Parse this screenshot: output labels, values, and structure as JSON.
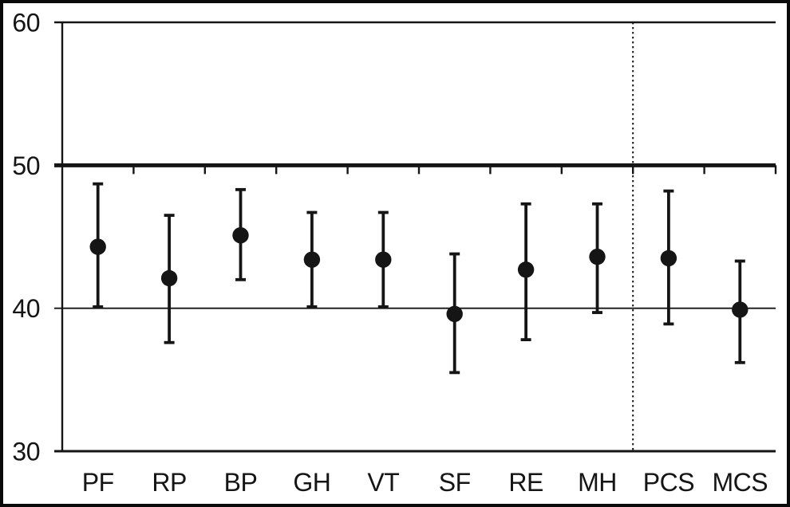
{
  "figure": {
    "background": "#ffffff",
    "frame_color": "#0a0a0a",
    "ink_color": "#151515"
  },
  "chart_data": {
    "type": "scatter",
    "subtype": "means-with-error-bars",
    "title": "",
    "xlabel": "",
    "ylabel": "",
    "categories": [
      "PF",
      "RP",
      "BP",
      "GH",
      "VT",
      "SF",
      "RE",
      "MH",
      "PCS",
      "MCS"
    ],
    "series": [
      {
        "name": "mean",
        "values": [
          44.3,
          42.1,
          45.1,
          43.4,
          43.4,
          39.6,
          42.7,
          43.6,
          43.5,
          39.9
        ]
      },
      {
        "name": "ci_lower",
        "values": [
          40.1,
          37.6,
          42.0,
          40.1,
          40.1,
          35.5,
          37.8,
          39.7,
          38.9,
          36.2
        ]
      },
      {
        "name": "ci_upper",
        "values": [
          48.7,
          46.5,
          48.3,
          46.7,
          46.7,
          43.8,
          47.3,
          47.3,
          48.2,
          43.3
        ]
      }
    ],
    "ylim": [
      30,
      60
    ],
    "yticks": [
      30,
      40,
      50,
      60
    ],
    "ytick_labels": [
      "30",
      "40",
      "50",
      "60"
    ],
    "reference_lines": [
      {
        "y": 50,
        "style": "thick-with-boundary-ticks"
      },
      {
        "y": 40,
        "style": "thin"
      }
    ],
    "divider": {
      "after_category": "MH",
      "style": "dotted-vertical"
    },
    "marker": "filled-circle",
    "legend": "none",
    "grid": "sparse-horizontal"
  }
}
